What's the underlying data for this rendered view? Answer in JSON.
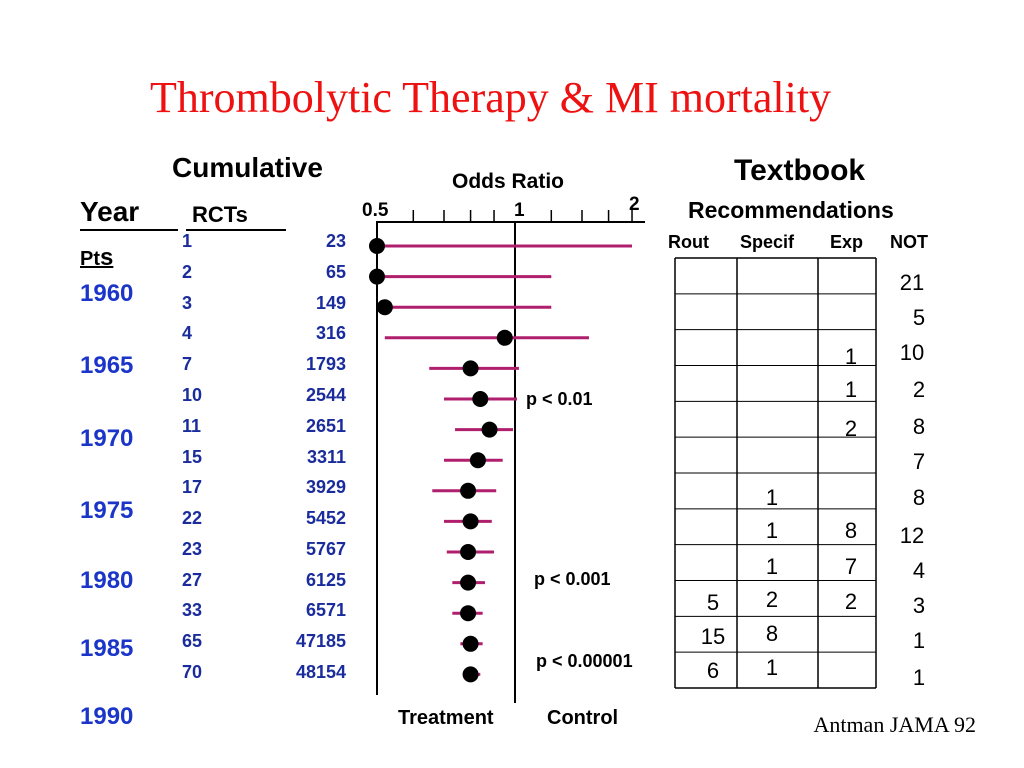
{
  "title": "Thrombolytic Therapy & MI mortality",
  "left": {
    "cumulative_label": "Cumulative",
    "year_label": "Year",
    "rcts_label": "RCTs",
    "pts_label_a": "Pt",
    "pts_label_b": "s",
    "years": [
      "1960",
      "1965",
      "1970",
      "1975",
      "1980",
      "1985",
      "1990"
    ]
  },
  "forest": {
    "axis_title": "Odds Ratio",
    "tick_labels": [
      "0.5",
      "1",
      "2"
    ],
    "bottom_left": "Treatment",
    "bottom_right": "Control",
    "pvalues": [
      "p < 0.01",
      "p < 0.001",
      "p < 0.00001"
    ],
    "line_color": "#b01e6e"
  },
  "chart_data": {
    "type": "forest",
    "axis": {
      "label": "Odds Ratio",
      "scale": "log",
      "ticks": [
        0.5,
        1,
        2
      ]
    },
    "rows": [
      {
        "rcts": "1",
        "patients": "23",
        "or": 0.5,
        "lo": 0.5,
        "hi": 1.8
      },
      {
        "rcts": "2",
        "patients": "65",
        "or": 0.5,
        "lo": 0.5,
        "hi": 1.2
      },
      {
        "rcts": "3",
        "patients": "149",
        "or": 0.52,
        "lo": 0.5,
        "hi": 1.2
      },
      {
        "rcts": "4",
        "patients": "316",
        "or": 0.95,
        "lo": 0.52,
        "hi": 1.45
      },
      {
        "rcts": "7",
        "patients": "1793",
        "or": 0.8,
        "lo": 0.65,
        "hi": 1.02
      },
      {
        "rcts": "10",
        "patients": "2544",
        "or": 0.84,
        "lo": 0.7,
        "hi": 1.01
      },
      {
        "rcts": "11",
        "patients": "2651",
        "or": 0.88,
        "lo": 0.74,
        "hi": 0.99
      },
      {
        "rcts": "15",
        "patients": "3311",
        "or": 0.83,
        "lo": 0.7,
        "hi": 0.94
      },
      {
        "rcts": "17",
        "patients": "3929",
        "or": 0.79,
        "lo": 0.66,
        "hi": 0.91
      },
      {
        "rcts": "22",
        "patients": "5452",
        "or": 0.8,
        "lo": 0.7,
        "hi": 0.89
      },
      {
        "rcts": "23",
        "patients": "5767",
        "or": 0.79,
        "lo": 0.71,
        "hi": 0.9
      },
      {
        "rcts": "27",
        "patients": "6125",
        "or": 0.79,
        "lo": 0.73,
        "hi": 0.86
      },
      {
        "rcts": "33",
        "patients": "6571",
        "or": 0.79,
        "lo": 0.73,
        "hi": 0.85
      },
      {
        "rcts": "65",
        "patients": "47185",
        "or": 0.8,
        "lo": 0.76,
        "hi": 0.85
      },
      {
        "rcts": "70",
        "patients": "48154",
        "or": 0.8,
        "lo": 0.77,
        "hi": 0.84
      }
    ]
  },
  "textbook": {
    "title": "Textbook",
    "subtitle": "Recommendations",
    "columns": [
      "Rout",
      "Specif",
      "Exp",
      "NOT"
    ],
    "rows": [
      [
        "",
        "",
        "",
        "21"
      ],
      [
        "",
        "",
        "",
        "5"
      ],
      [
        "",
        "",
        "1",
        "10"
      ],
      [
        "",
        "",
        "1",
        "2"
      ],
      [
        "",
        "",
        "2",
        "8"
      ],
      [
        "",
        "",
        "",
        "7"
      ],
      [
        "",
        "1",
        "",
        "8"
      ],
      [
        "",
        "1",
        "8",
        "12"
      ],
      [
        "",
        "1",
        "7",
        "4"
      ],
      [
        "5",
        "2",
        "2",
        "3"
      ],
      [
        "15",
        "8",
        "",
        "1"
      ],
      [
        "6",
        "1",
        "",
        "1"
      ]
    ]
  },
  "citation": "Antman JAMA 92"
}
